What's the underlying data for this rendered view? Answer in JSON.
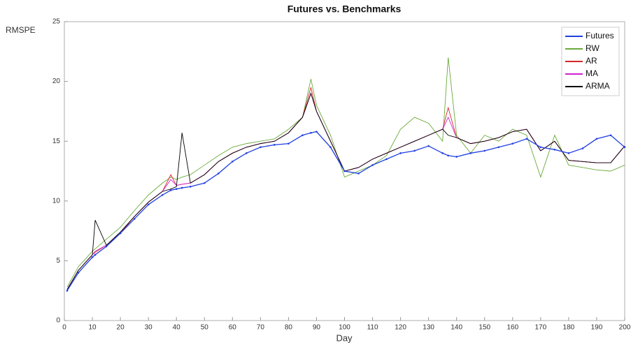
{
  "chart_data": {
    "type": "line",
    "title": "Futures vs. Benchmarks",
    "y_label": "RMSPE",
    "x_label": "Day",
    "x": [
      1,
      5,
      10,
      11,
      15,
      20,
      25,
      30,
      35,
      38,
      40,
      42,
      45,
      50,
      55,
      60,
      65,
      70,
      75,
      80,
      85,
      88,
      90,
      95,
      100,
      105,
      110,
      115,
      120,
      125,
      130,
      135,
      137,
      140,
      145,
      150,
      155,
      160,
      165,
      170,
      175,
      180,
      185,
      190,
      195,
      200
    ],
    "series": [
      {
        "name": "Futures",
        "color": "#1f3fdf",
        "values": [
          2.5,
          4,
          5.3,
          5.5,
          6.2,
          7.3,
          8.5,
          9.7,
          10.5,
          10.9,
          11,
          11.1,
          11.2,
          11.5,
          12.3,
          13.3,
          14,
          14.5,
          14.7,
          14.8,
          15.5,
          15.7,
          15.8,
          14.5,
          12.5,
          12.3,
          13,
          13.5,
          14,
          14.2,
          14.6,
          14,
          13.8,
          13.7,
          14,
          14.2,
          14.5,
          14.8,
          15.2,
          14.5,
          14.3,
          14,
          14.4,
          15.2,
          15.5,
          14.5
        ]
      },
      {
        "name": "RW",
        "color": "#6aaa3a",
        "values": [
          2.8,
          4.5,
          5.8,
          6,
          6.8,
          7.8,
          9.2,
          10.5,
          11.5,
          12,
          11.8,
          12,
          12.2,
          13,
          13.8,
          14.5,
          14.8,
          15,
          15.2,
          16,
          17,
          20.2,
          18,
          15.5,
          12,
          12.5,
          13,
          13.8,
          16,
          17,
          16.5,
          15,
          22,
          15.5,
          14,
          15.5,
          15,
          16,
          15.5,
          12,
          15.5,
          13,
          12.8,
          12.6,
          12.5,
          13
        ]
      },
      {
        "name": "AR",
        "color": "#d62728",
        "values": [
          2.6,
          4.2,
          5.5,
          5.7,
          6.3,
          7.3,
          8.7,
          9.9,
          10.8,
          12.2,
          11.3,
          11.4,
          11.5,
          12.2,
          13.3,
          14,
          14.5,
          14.8,
          15,
          15.7,
          17,
          19.5,
          17.5,
          15,
          12.5,
          12.8,
          13.5,
          14,
          14.5,
          15,
          15.5,
          16,
          17.8,
          15.3,
          14.8,
          15,
          15.3,
          15.8,
          16,
          14.2,
          15,
          13.4,
          13.3,
          13.2,
          13.2,
          14.6
        ]
      },
      {
        "name": "MA",
        "color": "#d020d0",
        "values": [
          2.6,
          4.2,
          5.5,
          5.8,
          6.3,
          7.4,
          8.7,
          9.9,
          10.8,
          11.8,
          11.3,
          11.4,
          11.5,
          12.2,
          13.3,
          14,
          14.5,
          14.8,
          15,
          15.7,
          17,
          19,
          17.5,
          15,
          12.5,
          12.8,
          13.5,
          14,
          14.5,
          15,
          15.5,
          16,
          17,
          15.3,
          14.8,
          15,
          15.3,
          15.8,
          16,
          14.2,
          15,
          13.4,
          13.3,
          13.2,
          13.2,
          14.6
        ]
      },
      {
        "name": "ARMA",
        "color": "#000000",
        "values": [
          2.6,
          4.2,
          5.5,
          8.4,
          6.3,
          7.4,
          8.7,
          9.9,
          10.8,
          11,
          11.2,
          15.7,
          11.5,
          12.2,
          13.3,
          14,
          14.5,
          14.8,
          15,
          15.7,
          17,
          19,
          17.5,
          15,
          12.5,
          12.8,
          13.5,
          14,
          14.5,
          15,
          15.5,
          16,
          15.5,
          15.3,
          14.8,
          15,
          15.3,
          15.8,
          16,
          14.2,
          15,
          13.4,
          13.3,
          13.2,
          13.2,
          14.6
        ]
      }
    ],
    "xlim": [
      0,
      200
    ],
    "xticks": [
      0,
      10,
      20,
      30,
      40,
      50,
      60,
      70,
      80,
      90,
      100,
      110,
      120,
      130,
      140,
      150,
      160,
      170,
      180,
      190,
      200
    ],
    "ylim": [
      0,
      25
    ],
    "yticks": [
      0,
      5,
      10,
      15,
      20,
      25
    ],
    "legend": "top-right"
  }
}
